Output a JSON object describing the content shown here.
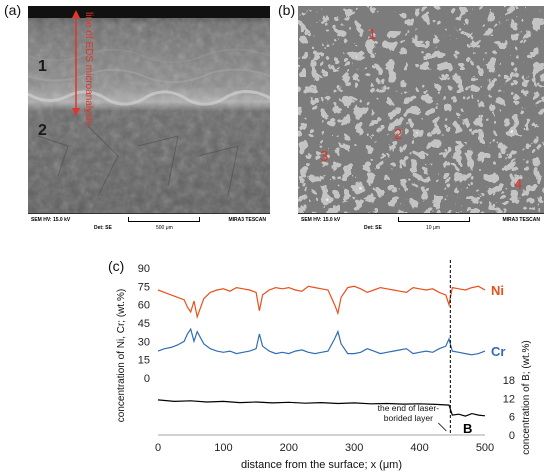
{
  "panels": {
    "a": {
      "label": "(a)",
      "region_1": "1",
      "region_2": "2",
      "line_label": "line of EDS microanalysis",
      "databar": {
        "hv": "SEM HV: 15.0 kV",
        "det": "Det: SE",
        "scale": "500 μm",
        "brand": "MIRA3 TESCAN"
      }
    },
    "b": {
      "label": "(b)",
      "points": [
        "1",
        "2",
        "3",
        "4"
      ],
      "databar": {
        "hv": "SEM HV: 15.0 kV",
        "det": "Det: SE",
        "scale": "10 μm",
        "brand": "MIRA3 TESCAN"
      }
    },
    "c": {
      "label": "(c)"
    }
  },
  "chart_data": {
    "type": "line",
    "xlabel": "distance from the surface; x (μm)",
    "ylabel_left": "concentration of Ni, Cr; (wt.%)",
    "ylabel_right": "concentration of B; (wt.%)",
    "xlim": [
      0,
      500
    ],
    "x_ticks": [
      0,
      100,
      200,
      300,
      400,
      500
    ],
    "left_ticks": [
      90,
      75,
      60,
      45,
      30,
      15,
      0
    ],
    "right_ticks": [
      18,
      12,
      6,
      0
    ],
    "annotation": "the end of laser-borided layer",
    "boundary_x": 447,
    "series": [
      {
        "name": "Ni",
        "color": "#e8501c",
        "axis": "left",
        "x": [
          0,
          10,
          20,
          30,
          40,
          45,
          50,
          55,
          60,
          70,
          80,
          90,
          100,
          110,
          120,
          130,
          140,
          150,
          155,
          160,
          170,
          180,
          190,
          200,
          210,
          220,
          230,
          240,
          250,
          260,
          270,
          275,
          280,
          290,
          300,
          310,
          320,
          330,
          340,
          350,
          360,
          370,
          380,
          390,
          400,
          410,
          420,
          430,
          440,
          445,
          450,
          460,
          470,
          480,
          490,
          500
        ],
        "y": [
          72,
          70,
          68,
          66,
          64,
          58,
          54,
          63,
          50,
          65,
          70,
          72,
          73,
          71,
          74,
          73,
          72,
          70,
          55,
          68,
          72,
          74,
          73,
          74,
          72,
          71,
          75,
          74,
          73,
          72,
          60,
          53,
          66,
          74,
          75,
          73,
          70,
          72,
          74,
          73,
          72,
          71,
          70,
          74,
          73,
          72,
          73,
          70,
          68,
          60,
          74,
          73,
          72,
          74,
          75,
          72
        ]
      },
      {
        "name": "Cr",
        "color": "#2f6db4",
        "axis": "left",
        "x": [
          0,
          10,
          20,
          30,
          40,
          45,
          50,
          55,
          60,
          70,
          80,
          90,
          100,
          110,
          120,
          130,
          140,
          150,
          155,
          160,
          170,
          180,
          190,
          200,
          210,
          220,
          230,
          240,
          250,
          260,
          270,
          275,
          280,
          290,
          300,
          310,
          320,
          330,
          340,
          350,
          360,
          370,
          380,
          390,
          400,
          410,
          420,
          430,
          440,
          445,
          450,
          460,
          470,
          480,
          490,
          500
        ],
        "y": [
          22,
          24,
          25,
          27,
          30,
          36,
          40,
          30,
          38,
          28,
          24,
          22,
          21,
          22,
          20,
          21,
          22,
          24,
          36,
          26,
          22,
          20,
          21,
          20,
          22,
          23,
          21,
          20,
          21,
          22,
          32,
          38,
          28,
          20,
          20,
          21,
          24,
          22,
          20,
          21,
          22,
          23,
          24,
          20,
          21,
          22,
          21,
          24,
          26,
          32,
          22,
          21,
          20,
          19,
          20,
          22
        ]
      },
      {
        "name": "B",
        "color": "#000000",
        "axis": "right",
        "x": [
          0,
          25,
          50,
          75,
          100,
          125,
          150,
          175,
          200,
          225,
          250,
          275,
          300,
          325,
          350,
          375,
          400,
          425,
          445,
          450,
          460,
          470,
          480,
          490,
          500
        ],
        "y": [
          11.5,
          11,
          11.2,
          10.8,
          11,
          10.6,
          10.8,
          10.5,
          10.7,
          10.4,
          10.6,
          10.3,
          10.5,
          10.2,
          10.3,
          10.1,
          10.2,
          10,
          9.8,
          6.5,
          6.8,
          6.2,
          7,
          6.5,
          6.3
        ]
      }
    ]
  }
}
